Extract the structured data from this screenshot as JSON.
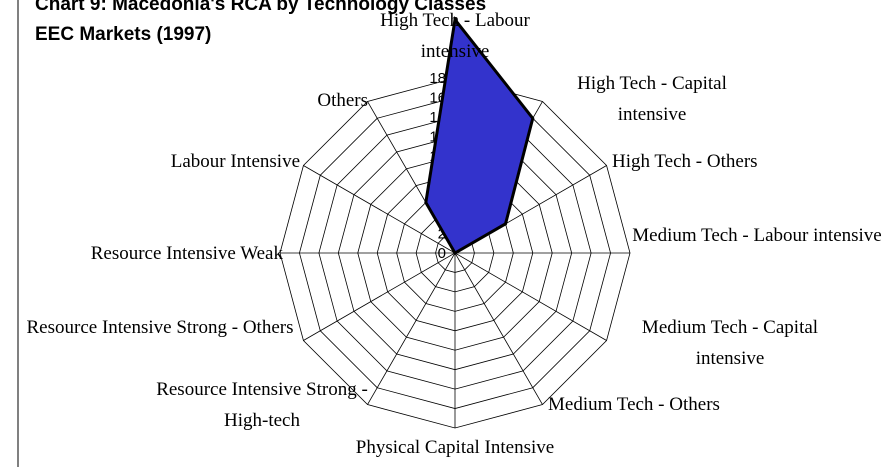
{
  "chart_data": {
    "type": "radar",
    "title": "Chart 9: Macedonia's RCA by Technology Classes",
    "subtitle": "EEC Markets (1997)",
    "categories": [
      "High Tech - Labour intensive",
      "High Tech - Capital intensive",
      "High Tech - Others",
      "Medium Tech  - Labour intensive",
      "Medium Tech - Capital intensive",
      "Medium Tech - Others",
      "Physical Capital Intensive",
      "Resource Intensive Strong - High-tech",
      "Resource Intensive Strong - Others",
      "Resource Intensive Weak",
      "Labour Intensive",
      "Others"
    ],
    "series": [
      {
        "name": "RCA",
        "color": "#3333cc",
        "values": [
          24,
          16,
          6,
          0,
          0,
          0,
          0,
          0,
          0,
          0,
          0,
          6
        ]
      }
    ],
    "ylim": [
      0,
      18
    ],
    "yticks": [
      0,
      2,
      4,
      6,
      8,
      10,
      12,
      14,
      16,
      18
    ],
    "grid": true
  }
}
